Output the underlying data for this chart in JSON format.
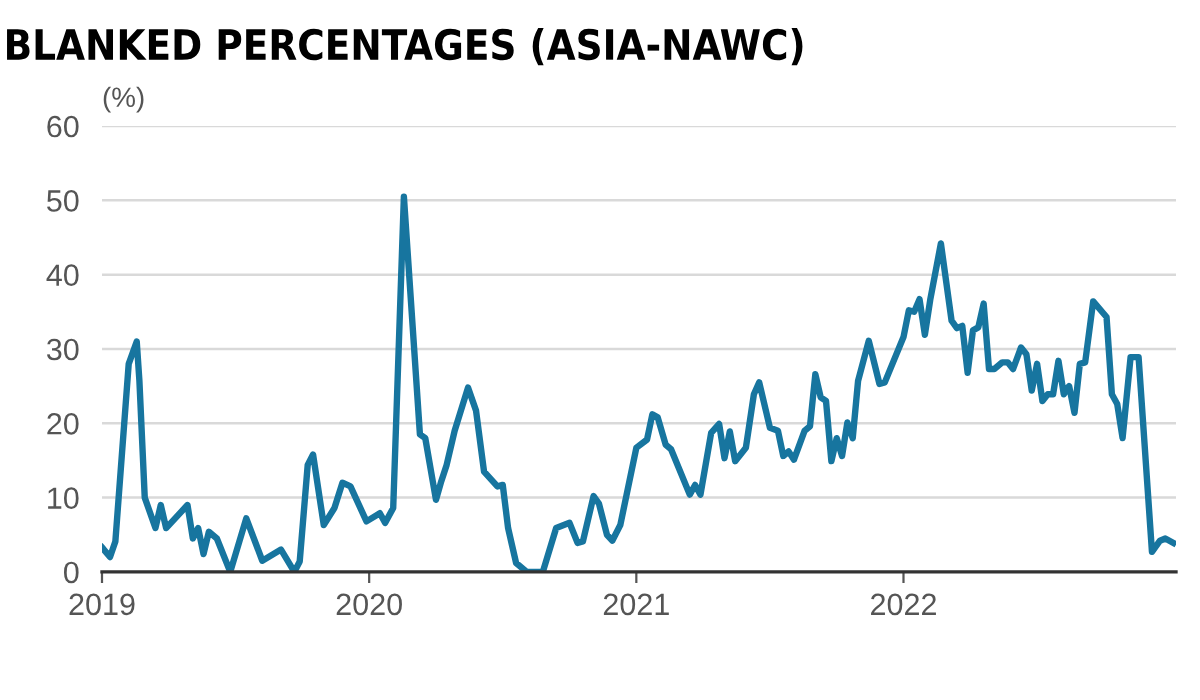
{
  "chart_data": {
    "type": "line",
    "title": "BLANKED PERCENTAGES (ASIA-NAWC)",
    "ylabel": "(%)",
    "x": [
      2019.0,
      2019.03,
      2019.05,
      2019.1,
      2019.13,
      2019.14,
      2019.16,
      2019.2,
      2019.22,
      2019.24,
      2019.32,
      2019.34,
      2019.36,
      2019.38,
      2019.4,
      2019.43,
      2019.48,
      2019.54,
      2019.6,
      2019.67,
      2019.72,
      2019.74,
      2019.77,
      2019.79,
      2019.83,
      2019.87,
      2019.9,
      2019.93,
      2019.99,
      2020.04,
      2020.06,
      2020.09,
      2020.13,
      2020.19,
      2020.21,
      2020.25,
      2020.27,
      2020.29,
      2020.32,
      2020.37,
      2020.4,
      2020.43,
      2020.48,
      2020.5,
      2020.52,
      2020.55,
      2020.59,
      2020.65,
      2020.7,
      2020.75,
      2020.78,
      2020.8,
      2020.84,
      2020.86,
      2020.89,
      2020.91,
      2020.94,
      2021.0,
      2021.04,
      2021.06,
      2021.08,
      2021.11,
      2021.13,
      2021.2,
      2021.22,
      2021.24,
      2021.28,
      2021.31,
      2021.33,
      2021.35,
      2021.37,
      2021.41,
      2021.44,
      2021.46,
      2021.5,
      2021.53,
      2021.55,
      2021.57,
      2021.59,
      2021.63,
      2021.65,
      2021.67,
      2021.69,
      2021.71,
      2021.73,
      2021.75,
      2021.77,
      2021.79,
      2021.81,
      2021.83,
      2021.87,
      2021.91,
      2021.93,
      2022.0,
      2022.02,
      2022.04,
      2022.06,
      2022.08,
      2022.1,
      2022.14,
      2022.18,
      2022.2,
      2022.22,
      2022.24,
      2022.26,
      2022.28,
      2022.3,
      2022.32,
      2022.34,
      2022.37,
      2022.39,
      2022.41,
      2022.44,
      2022.46,
      2022.48,
      2022.5,
      2022.52,
      2022.54,
      2022.56,
      2022.58,
      2022.6,
      2022.62,
      2022.64,
      2022.66,
      2022.68,
      2022.71,
      2022.76,
      2022.78,
      2022.8,
      2022.82,
      2022.85,
      2022.88,
      2022.93,
      2022.96,
      2022.98,
      2023.01
    ],
    "series": [
      {
        "color": "#17759f",
        "values": [
          3.3,
          2.0,
          4.1,
          28,
          31,
          25.7,
          10,
          5.9,
          9,
          5.9,
          9,
          4.5,
          5.9,
          2.4,
          5.4,
          4.5,
          0,
          7.2,
          1.5,
          3,
          0,
          1.4,
          14.4,
          15.8,
          6.3,
          8.6,
          12,
          11.5,
          6.8,
          7.9,
          6.6,
          8.6,
          50.5,
          18.5,
          18,
          9.7,
          12.2,
          14.4,
          19,
          24.8,
          21.7,
          13.5,
          11.5,
          11.7,
          5.9,
          1.2,
          0,
          0,
          5.9,
          6.6,
          3.9,
          4.1,
          10.2,
          9.2,
          5,
          4.2,
          6.3,
          16.7,
          17.8,
          21.2,
          20.8,
          17.1,
          16.5,
          10.4,
          11.7,
          10.4,
          18.7,
          19.9,
          15.3,
          18.9,
          14.9,
          16.7,
          23.9,
          25.5,
          19.4,
          19,
          15.6,
          16.2,
          15.1,
          19,
          19.6,
          26.6,
          23.5,
          23,
          14.9,
          18,
          15.6,
          20.1,
          18,
          25.7,
          31.1,
          25.3,
          25.5,
          31.6,
          35.2,
          35,
          36.7,
          31.9,
          36.6,
          44.2,
          33.8,
          32.8,
          33.1,
          26.8,
          32.5,
          32.9,
          36.1,
          27.3,
          27.3,
          28.2,
          28.2,
          27.3,
          30.2,
          29.3,
          24.4,
          28,
          23,
          23.9,
          23.9,
          28.4,
          23.9,
          25,
          21.4,
          28,
          28.2,
          36.4,
          34.3,
          23.9,
          22.6,
          18,
          28.9,
          28.9,
          2.7,
          4.2,
          4.5,
          3.9
        ]
      }
    ],
    "xlim": [
      2019,
      2023.02
    ],
    "xticks": [
      2019,
      2020,
      2021,
      2022
    ],
    "ylim": [
      0,
      60
    ],
    "yticks": [
      0,
      10,
      20,
      30,
      40,
      50,
      60
    ],
    "grid": "y",
    "legend": false,
    "marker": "none",
    "line_style": "solid"
  }
}
